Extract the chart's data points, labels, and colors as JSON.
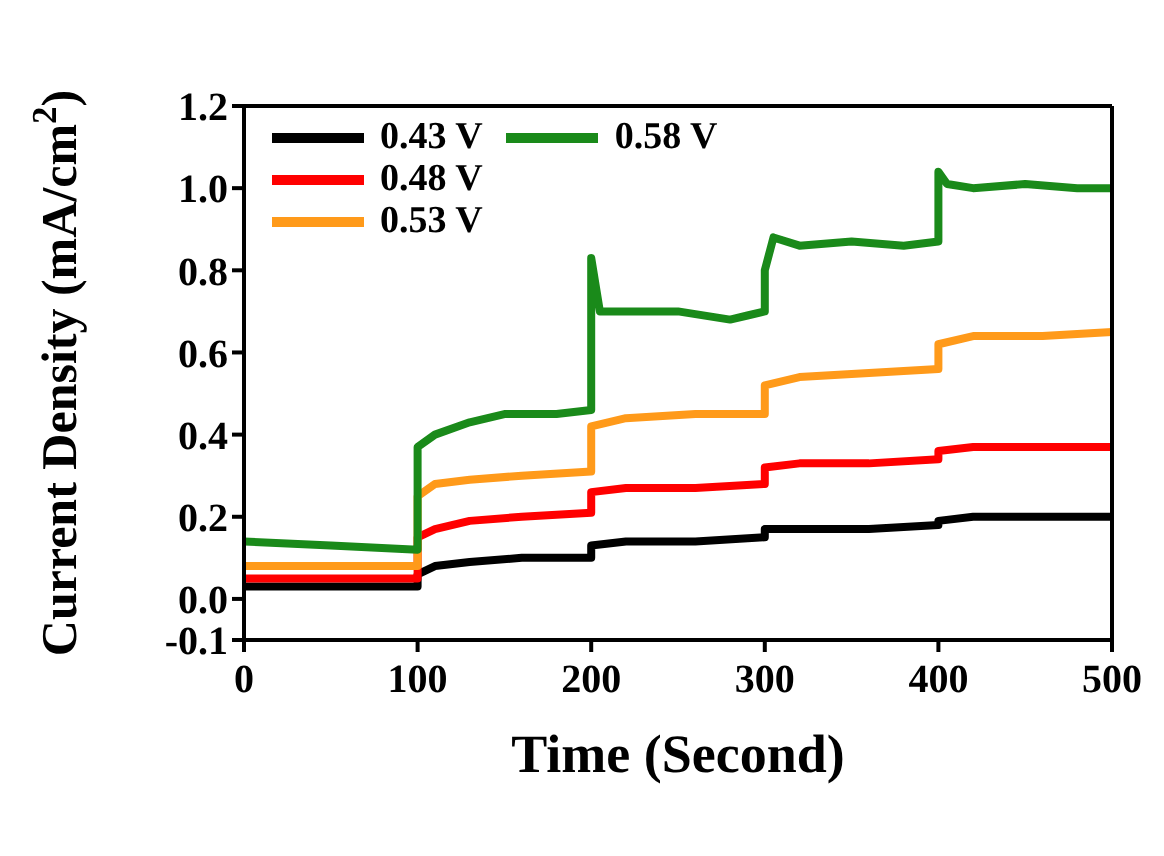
{
  "chart_data": {
    "type": "line",
    "xlabel": "Time (Second)",
    "ylabel": "Current Density (mA/cm$^{2}$)",
    "xlim": [
      0,
      500
    ],
    "xticks": [
      0,
      100,
      200,
      300,
      400,
      500
    ],
    "ylim": [
      -0.1,
      1.2
    ],
    "yticks": [
      -0.1,
      {
        "value": 0,
        "label": "0.0"
      },
      0.2,
      0.4,
      0.6,
      0.8,
      {
        "value": 1,
        "label": "1.0"
      },
      1.2
    ],
    "grid": false,
    "legend": "top left",
    "marker": "none",
    "line_style": "solid",
    "series": [
      {
        "name": "0.43 V",
        "color": "#000000",
        "x": [
          0,
          50,
          100,
          100,
          110,
          130,
          160,
          200,
          200,
          220,
          260,
          300,
          300,
          320,
          360,
          400,
          400,
          420,
          460,
          500
        ],
        "values": [
          0.03,
          0.03,
          0.03,
          0.06,
          0.08,
          0.09,
          0.1,
          0.1,
          0.13,
          0.14,
          0.14,
          0.15,
          0.17,
          0.17,
          0.17,
          0.18,
          0.19,
          0.2,
          0.2,
          0.2
        ]
      },
      {
        "name": "0.48 V",
        "color": "#ff0000",
        "x": [
          0,
          50,
          100,
          100,
          110,
          130,
          160,
          200,
          200,
          220,
          260,
          300,
          300,
          320,
          360,
          400,
          400,
          420,
          460,
          500
        ],
        "values": [
          0.05,
          0.05,
          0.05,
          0.15,
          0.17,
          0.19,
          0.2,
          0.21,
          0.26,
          0.27,
          0.27,
          0.28,
          0.32,
          0.33,
          0.33,
          0.34,
          0.36,
          0.37,
          0.37,
          0.37
        ]
      },
      {
        "name": "0.53 V",
        "color": "#ff9a1a",
        "x": [
          0,
          50,
          100,
          100,
          110,
          130,
          160,
          200,
          200,
          220,
          260,
          300,
          300,
          320,
          360,
          400,
          400,
          420,
          460,
          500
        ],
        "values": [
          0.08,
          0.08,
          0.08,
          0.25,
          0.28,
          0.29,
          0.3,
          0.31,
          0.42,
          0.44,
          0.45,
          0.45,
          0.52,
          0.54,
          0.55,
          0.56,
          0.62,
          0.64,
          0.64,
          0.65
        ]
      },
      {
        "name": "0.58 V",
        "color": "#1a8a1a",
        "x": [
          0,
          50,
          100,
          100,
          110,
          130,
          150,
          180,
          200,
          200,
          205,
          220,
          250,
          280,
          290,
          300,
          300,
          305,
          320,
          350,
          380,
          400,
          400,
          405,
          420,
          450,
          480,
          500
        ],
        "values": [
          0.14,
          0.13,
          0.12,
          0.37,
          0.4,
          0.43,
          0.45,
          0.45,
          0.46,
          0.83,
          0.7,
          0.7,
          0.7,
          0.68,
          0.69,
          0.7,
          0.8,
          0.88,
          0.86,
          0.87,
          0.86,
          0.87,
          1.04,
          1.01,
          1.0,
          1.01,
          1.0,
          1.0
        ]
      }
    ]
  }
}
